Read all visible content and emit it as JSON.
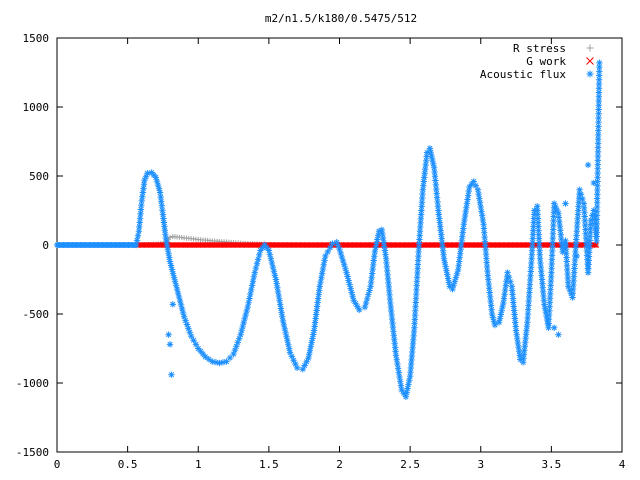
{
  "chart_data": {
    "type": "scatter",
    "title": "m2/n1.5/k180/0.5475/512",
    "xlabel": "",
    "ylabel": "",
    "xlim": [
      0,
      4
    ],
    "ylim": [
      -1500,
      1500
    ],
    "x_ticks": [
      "0",
      "0.5",
      "1",
      "1.5",
      "2",
      "2.5",
      "3",
      "3.5",
      "4"
    ],
    "y_ticks": [
      "1500",
      "1000",
      "500",
      "0",
      "-500",
      "-1000",
      "-1500"
    ],
    "grid": false,
    "legend_position": "top-right",
    "series": [
      {
        "name": "R stress",
        "color": "#a0a0a0",
        "marker": "plus",
        "points": [
          [
            0.56,
            0
          ],
          [
            0.6,
            2
          ],
          [
            0.65,
            4
          ],
          [
            0.7,
            6
          ],
          [
            0.75,
            10
          ],
          [
            0.78,
            30
          ],
          [
            0.8,
            55
          ],
          [
            0.82,
            62
          ],
          [
            0.85,
            58
          ],
          [
            0.9,
            52
          ],
          [
            0.95,
            46
          ],
          [
            1.0,
            40
          ],
          [
            1.05,
            35
          ],
          [
            1.1,
            30
          ],
          [
            1.15,
            26
          ],
          [
            1.2,
            22
          ],
          [
            1.25,
            18
          ],
          [
            1.3,
            14
          ],
          [
            1.35,
            10
          ],
          [
            1.4,
            8
          ],
          [
            1.45,
            5
          ],
          [
            1.5,
            3
          ],
          [
            1.6,
            2
          ],
          [
            1.7,
            1
          ],
          [
            1.8,
            0
          ],
          [
            2.0,
            0
          ],
          [
            2.5,
            0
          ],
          [
            3.0,
            0
          ],
          [
            3.5,
            0
          ],
          [
            3.82,
            0
          ]
        ]
      },
      {
        "name": "G work",
        "color": "#ff0000",
        "marker": "cross",
        "x_range": [
          0.56,
          3.82
        ],
        "y_value": 0
      },
      {
        "name": "Acoustic flux",
        "color": "#1e90ff",
        "marker": "star",
        "flat_segment": {
          "x_range": [
            0,
            0.56
          ],
          "y_value": 0
        },
        "curve": [
          [
            0.56,
            0
          ],
          [
            0.58,
            100
          ],
          [
            0.6,
            320
          ],
          [
            0.62,
            470
          ],
          [
            0.64,
            520
          ],
          [
            0.67,
            525
          ],
          [
            0.7,
            490
          ],
          [
            0.73,
            380
          ],
          [
            0.75,
            220
          ],
          [
            0.77,
            50
          ],
          [
            0.8,
            -120
          ],
          [
            0.85,
            -320
          ],
          [
            0.9,
            -520
          ],
          [
            0.95,
            -660
          ],
          [
            1.0,
            -750
          ],
          [
            1.05,
            -810
          ],
          [
            1.1,
            -845
          ],
          [
            1.15,
            -855
          ],
          [
            1.2,
            -845
          ],
          [
            1.25,
            -790
          ],
          [
            1.3,
            -650
          ],
          [
            1.35,
            -450
          ],
          [
            1.4,
            -200
          ],
          [
            1.44,
            -40
          ],
          [
            1.47,
            0
          ],
          [
            1.5,
            -40
          ],
          [
            1.55,
            -250
          ],
          [
            1.6,
            -550
          ],
          [
            1.65,
            -780
          ],
          [
            1.7,
            -890
          ],
          [
            1.74,
            -900
          ],
          [
            1.78,
            -820
          ],
          [
            1.82,
            -620
          ],
          [
            1.86,
            -300
          ],
          [
            1.9,
            -80
          ],
          [
            1.95,
            10
          ],
          [
            1.98,
            20
          ],
          [
            2.0,
            -30
          ],
          [
            2.05,
            -200
          ],
          [
            2.1,
            -400
          ],
          [
            2.14,
            -470
          ],
          [
            2.18,
            -450
          ],
          [
            2.22,
            -300
          ],
          [
            2.25,
            -50
          ],
          [
            2.28,
            100
          ],
          [
            2.3,
            110
          ],
          [
            2.33,
            -100
          ],
          [
            2.36,
            -420
          ],
          [
            2.4,
            -800
          ],
          [
            2.44,
            -1050
          ],
          [
            2.47,
            -1100
          ],
          [
            2.5,
            -950
          ],
          [
            2.53,
            -600
          ],
          [
            2.56,
            -50
          ],
          [
            2.59,
            400
          ],
          [
            2.62,
            670
          ],
          [
            2.64,
            700
          ],
          [
            2.67,
            560
          ],
          [
            2.7,
            250
          ],
          [
            2.74,
            -100
          ],
          [
            2.78,
            -300
          ],
          [
            2.8,
            -320
          ],
          [
            2.84,
            -180
          ],
          [
            2.88,
            150
          ],
          [
            2.92,
            420
          ],
          [
            2.95,
            460
          ],
          [
            2.98,
            400
          ],
          [
            3.02,
            150
          ],
          [
            3.05,
            -220
          ],
          [
            3.08,
            -500
          ],
          [
            3.1,
            -580
          ],
          [
            3.13,
            -560
          ],
          [
            3.16,
            -420
          ],
          [
            3.19,
            -200
          ],
          [
            3.22,
            -300
          ],
          [
            3.25,
            -620
          ],
          [
            3.28,
            -830
          ],
          [
            3.3,
            -850
          ],
          [
            3.33,
            -560
          ],
          [
            3.36,
            -100
          ],
          [
            3.38,
            250
          ],
          [
            3.4,
            280
          ],
          [
            3.42,
            -100
          ],
          [
            3.45,
            -430
          ],
          [
            3.48,
            -600
          ],
          [
            3.5,
            -200
          ],
          [
            3.52,
            300
          ],
          [
            3.55,
            230
          ],
          [
            3.58,
            -50
          ],
          [
            3.6,
            30
          ],
          [
            3.62,
            -300
          ],
          [
            3.65,
            -380
          ],
          [
            3.68,
            100
          ],
          [
            3.7,
            400
          ],
          [
            3.73,
            300
          ],
          [
            3.76,
            -200
          ],
          [
            3.78,
            180
          ],
          [
            3.8,
            250
          ],
          [
            3.82,
            30
          ],
          [
            3.84,
            1320
          ]
        ],
        "extra_points": [
          [
            0.81,
            -940
          ],
          [
            0.79,
            -650
          ],
          [
            0.8,
            -720
          ],
          [
            0.82,
            -430
          ],
          [
            3.55,
            -650
          ],
          [
            3.52,
            -600
          ],
          [
            3.6,
            300
          ],
          [
            3.8,
            450
          ],
          [
            3.76,
            580
          ],
          [
            3.68,
            -80
          ]
        ]
      }
    ]
  }
}
